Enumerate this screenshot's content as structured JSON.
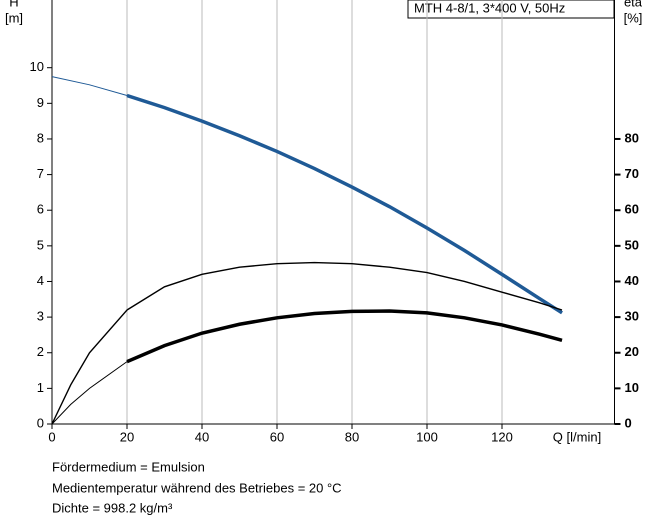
{
  "chart_data": {
    "type": "line",
    "title": "MTH 4-8/1, 3*400 V, 50Hz",
    "y_label": [
      "H",
      "[m]"
    ],
    "y2_label": [
      "eta",
      "[%]"
    ],
    "x_label": "Q [l/min]",
    "xlim": [
      0,
      150
    ],
    "xticks": [
      0,
      20,
      40,
      60,
      80,
      100,
      120
    ],
    "ylim": [
      0,
      11.9
    ],
    "yticks": [
      0,
      1,
      2,
      3,
      4,
      5,
      6,
      7,
      8,
      9,
      10
    ],
    "y2lim": [
      0,
      119
    ],
    "y2ticks": [
      0,
      10,
      20,
      30,
      40,
      50,
      60,
      70,
      80
    ],
    "grid": "vertical",
    "series": [
      {
        "color": "#1f5a96",
        "axis": "y",
        "x": [
          0,
          10,
          20,
          30,
          40,
          50,
          60,
          70,
          80,
          90,
          100,
          110,
          120,
          130,
          136
        ],
        "values": [
          9.75,
          9.52,
          9.22,
          8.88,
          8.5,
          8.09,
          7.65,
          7.17,
          6.65,
          6.1,
          5.5,
          4.87,
          4.2,
          3.52,
          3.12
        ]
      },
      {
        "color": "#000000",
        "axis": "y2",
        "x": [
          0,
          5,
          10,
          20,
          30,
          40,
          50,
          60,
          70,
          80,
          90,
          100,
          110,
          120,
          130,
          136
        ],
        "values": [
          0,
          11,
          20,
          32,
          38.5,
          42,
          44,
          45,
          45.3,
          45,
          44,
          42.5,
          40,
          37,
          34,
          32
        ]
      },
      {
        "color": "#000000",
        "axis": "y2",
        "x": [
          0,
          5,
          10,
          20,
          30,
          40,
          50,
          60,
          70,
          80,
          90,
          100,
          110,
          120,
          130,
          136
        ],
        "values": [
          0,
          5.5,
          10,
          17.5,
          22,
          25.5,
          28,
          29.8,
          31,
          31.6,
          31.7,
          31.2,
          29.8,
          27.8,
          25.2,
          23.5
        ]
      }
    ],
    "notes": [
      "Fördermedium = Emulsion",
      "Medientemperatur während des Betriebes = 20 °C",
      "Dichte = 998.2 kg/m³"
    ]
  }
}
